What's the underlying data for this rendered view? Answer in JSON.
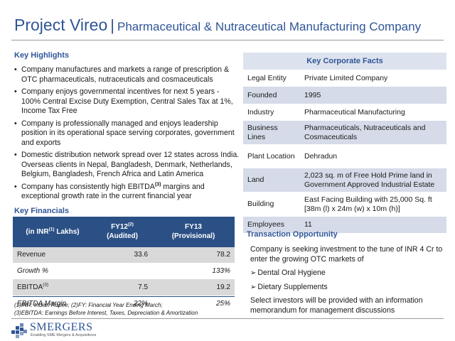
{
  "header": {
    "title_main": "Project Vireo",
    "title_sep": "|",
    "title_sub": "Pharmaceutical & Nutraceutical Manufacturing Company"
  },
  "highlights": {
    "heading": "Key Highlights",
    "items": [
      "Company manufactures and markets a range of prescription & OTC pharmaceuticals, nutraceuticals and cosmaceuticals",
      "Company enjoys governmental incentives for next 5 years - 100% Central Excise Duty Exemption, Central Sales Tax at 1%, Income Tax Free",
      "Company is professionally managed and enjoys leadership position in its operational space serving corporates, government and exports",
      "Domestic distribution network spread over 12 states across India. Overseas clients in Nepal, Bangladesh, Denmark, Netherlands, Belgium, Bangladesh, French Africa and Latin America"
    ],
    "last_item": {
      "prefix": "Company has consistently high EBITDA",
      "sup": "(3)",
      "suffix": " margins and exceptional growth rate in the current financial year"
    }
  },
  "financials": {
    "heading": "Key Financials",
    "col_label_prefix": "(in INR",
    "col_label_sup": "(1)",
    "col_label_suffix": " Lakhs)",
    "fy12_label": "FY12",
    "fy12_sup": "(2)",
    "fy12_sub": "(Audited)",
    "fy13_label": "FY13",
    "fy13_sub": "(Provisional)",
    "rows": [
      {
        "label": "Revenue",
        "sup": "",
        "fy12": "33.6",
        "fy13": "78.2"
      },
      {
        "label": "Growth %",
        "sup": "",
        "fy12": "",
        "fy13": "133%"
      },
      {
        "label": "EBITDA",
        "sup": "(3)",
        "fy12": "7.5",
        "fy13": "19.2"
      },
      {
        "label": "EBITDA Margin",
        "sup": "",
        "fy12": "22%",
        "fy13": "25%"
      }
    ],
    "footnote1": "(1)INR: Indian Rupee; (2)FY: Financial Year Ending March;",
    "footnote2": "(3)EBITDA: Earnings Before Interest, Taxes, Depreciation & Amortization"
  },
  "corporate_facts": {
    "heading": "Key Corporate Facts",
    "rows": [
      {
        "key": "Legal Entity",
        "value": "Private Limited Company"
      },
      {
        "key": "Founded",
        "value": "1995"
      },
      {
        "key": "Industry",
        "value": "Pharmaceutical Manufacturing"
      },
      {
        "key": "Business Lines",
        "value": "Pharmaceuticals, Nutraceuticals and Cosmaceuticals"
      },
      {
        "key": "Plant Location",
        "value": "Dehradun"
      },
      {
        "key": "Land",
        "value": "2,023 sq. m of Free Hold Prime land in Government Approved Industrial Estate"
      },
      {
        "key": "Building",
        "value": "East Facing Building with 25,000 Sq. ft [38m (l) x 24m (w) x 10m (h)]"
      },
      {
        "key": "Employees",
        "value": "11"
      }
    ]
  },
  "transaction": {
    "heading": "Transaction Opportunity",
    "intro": "Company is seeking investment to the tune of INR 4 Cr to enter the growing OTC markets of",
    "arrow_glyph": "➢",
    "items": [
      "Dental Oral Hygiene",
      "Dietary Supplements"
    ],
    "outro": "Select investors will be provided with an information memorandum for management discussions"
  },
  "logo": {
    "name": "SMERGERS",
    "tagline": "Enabling SME Mergers & Acquisitions"
  },
  "colors": {
    "accent": "#2f5597",
    "table_header": "#2b5085",
    "row_shade": "#d9d9d9",
    "facts_shade": "#d5dbe8"
  }
}
